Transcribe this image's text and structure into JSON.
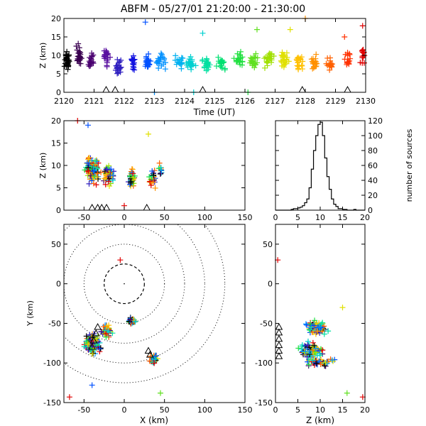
{
  "title": "ABFM - 05/27/01 21:20:00 - 21:30:00",
  "chart_data": [
    {
      "id": "time-height",
      "type": "scatter",
      "xlabel": "Time (UT)",
      "ylabel": "Z (km)",
      "xlim": [
        2120,
        2130
      ],
      "ylim": [
        0,
        20
      ],
      "xticks": [
        "2120",
        "2121",
        "2122",
        "2123",
        "2124",
        "2125",
        "2126",
        "2127",
        "2128",
        "2129",
        "2130"
      ],
      "yticks": [
        "0",
        "5",
        "10",
        "15",
        "20"
      ],
      "clusters": [
        {
          "x": 2120.1,
          "y": 9,
          "n": 30,
          "color": "#000000",
          "dx": 0.12,
          "dy": 3
        },
        {
          "x": 2120.5,
          "y": 10,
          "n": 28,
          "color": "#3a0050",
          "dx": 0.12,
          "dy": 4
        },
        {
          "x": 2120.9,
          "y": 9,
          "n": 22,
          "color": "#4a0070",
          "dx": 0.12,
          "dy": 3.5
        },
        {
          "x": 2121.4,
          "y": 9,
          "n": 22,
          "color": "#5a10a0",
          "dx": 0.15,
          "dy": 3.5
        },
        {
          "x": 2121.8,
          "y": 7,
          "n": 24,
          "color": "#3020c0",
          "dx": 0.15,
          "dy": 3
        },
        {
          "x": 2122.3,
          "y": 8,
          "n": 18,
          "color": "#1010e0",
          "dx": 0.12,
          "dy": 3
        },
        {
          "x": 2122.8,
          "y": 8,
          "n": 22,
          "color": "#0050ff",
          "dx": 0.15,
          "dy": 4
        },
        {
          "x": 2123.2,
          "y": 8,
          "n": 22,
          "color": "#0090ff",
          "dx": 0.2,
          "dy": 3
        },
        {
          "x": 2123.8,
          "y": 8,
          "n": 16,
          "color": "#00b0f0",
          "dx": 0.2,
          "dy": 3
        },
        {
          "x": 2124.2,
          "y": 8,
          "n": 22,
          "color": "#00d0d0",
          "dx": 0.2,
          "dy": 3
        },
        {
          "x": 2124.7,
          "y": 8,
          "n": 22,
          "color": "#00e0a0",
          "dx": 0.2,
          "dy": 3
        },
        {
          "x": 2125.2,
          "y": 8,
          "n": 20,
          "color": "#00e070",
          "dx": 0.2,
          "dy": 3
        },
        {
          "x": 2125.8,
          "y": 9,
          "n": 22,
          "color": "#20e040",
          "dx": 0.2,
          "dy": 3
        },
        {
          "x": 2126.3,
          "y": 8,
          "n": 22,
          "color": "#60e020",
          "dx": 0.2,
          "dy": 3
        },
        {
          "x": 2126.8,
          "y": 9,
          "n": 22,
          "color": "#a0e000",
          "dx": 0.2,
          "dy": 3
        },
        {
          "x": 2127.3,
          "y": 9,
          "n": 26,
          "color": "#e0e000",
          "dx": 0.2,
          "dy": 3
        },
        {
          "x": 2127.8,
          "y": 8,
          "n": 22,
          "color": "#ffc000",
          "dx": 0.2,
          "dy": 3
        },
        {
          "x": 2128.3,
          "y": 8,
          "n": 22,
          "color": "#ff9000",
          "dx": 0.15,
          "dy": 3
        },
        {
          "x": 2128.8,
          "y": 8,
          "n": 18,
          "color": "#ff6000",
          "dx": 0.15,
          "dy": 3
        },
        {
          "x": 2129.4,
          "y": 9,
          "n": 16,
          "color": "#ff3000",
          "dx": 0.15,
          "dy": 4
        },
        {
          "x": 2129.9,
          "y": 10,
          "n": 14,
          "color": "#e00000",
          "dx": 0.1,
          "dy": 4
        }
      ],
      "outliers": [
        {
          "x": 2122.7,
          "y": 19,
          "color": "#0050ff"
        },
        {
          "x": 2124.6,
          "y": 16,
          "color": "#00d0d0"
        },
        {
          "x": 2126.4,
          "y": 17,
          "color": "#60e020"
        },
        {
          "x": 2127.5,
          "y": 17,
          "color": "#e0e000"
        },
        {
          "x": 2128.0,
          "y": 20,
          "color": "#ff9000"
        },
        {
          "x": 2129.3,
          "y": 15,
          "color": "#ff3000"
        },
        {
          "x": 2129.9,
          "y": 18,
          "color": "#e00000"
        },
        {
          "x": 2123.0,
          "y": 0,
          "color": "#0090ff"
        },
        {
          "x": 2124.3,
          "y": 0,
          "color": "#00d0d0"
        },
        {
          "x": 2126.1,
          "y": 0,
          "color": "#20e040"
        }
      ],
      "triangles_x": [
        2121.4,
        2121.7,
        2124.6,
        2127.9,
        2129.4
      ]
    },
    {
      "id": "x-height",
      "type": "scatter",
      "ylabel": "Z (km)",
      "xlim": [
        -75,
        150
      ],
      "ylim": [
        0,
        20
      ],
      "xticks": [
        "-50",
        "0",
        "50",
        "100",
        "150"
      ],
      "yticks": [
        "0",
        "5",
        "10",
        "15",
        "20"
      ],
      "clusters": [
        {
          "x": -40,
          "y": 9,
          "n": 110,
          "dx": 12,
          "dy": 4
        },
        {
          "x": -20,
          "y": 8,
          "n": 60,
          "dx": 8,
          "dy": 3
        },
        {
          "x": 10,
          "y": 7,
          "n": 45,
          "dx": 6,
          "dy": 3
        },
        {
          "x": 35,
          "y": 7,
          "n": 30,
          "dx": 6,
          "dy": 3
        },
        {
          "x": 45,
          "y": 9,
          "n": 10,
          "dx": 4,
          "dy": 2
        }
      ],
      "outliers": [
        {
          "x": -58,
          "y": 20,
          "color": "#e00000"
        },
        {
          "x": 30,
          "y": 17,
          "color": "#e0e000"
        },
        {
          "x": -45,
          "y": 19,
          "color": "#0050ff"
        },
        {
          "x": 0,
          "y": 1,
          "color": "#e00000"
        }
      ],
      "triangles_x": [
        -40,
        -33,
        -28,
        -22,
        28
      ]
    },
    {
      "id": "height-histogram",
      "type": "line",
      "xlim": [
        0,
        20
      ],
      "ylim": [
        0,
        120
      ],
      "ylabel": "number of sources",
      "xticks": [
        "0",
        "5",
        "10",
        "15",
        "20"
      ],
      "yticks": [
        "0",
        "20",
        "40",
        "60",
        "80",
        "100",
        "120"
      ],
      "bin_width": 0.5,
      "values": [
        0,
        0,
        0,
        0,
        0,
        0,
        0,
        1,
        2,
        2,
        3,
        4,
        6,
        10,
        15,
        30,
        55,
        80,
        100,
        115,
        118,
        100,
        70,
        45,
        28,
        15,
        8,
        5,
        2,
        2,
        1,
        1,
        0,
        0,
        0,
        1,
        0,
        0,
        0,
        0
      ]
    },
    {
      "id": "plan-view",
      "type": "scatter",
      "xlabel": "X (km)",
      "ylabel": "Y (km)",
      "xlim": [
        -75,
        150
      ],
      "ylim": [
        -150,
        75
      ],
      "xticks": [
        "-50",
        "0",
        "50",
        "100",
        "150"
      ],
      "yticks": [
        "-150",
        "-100",
        "-50",
        "0",
        "50"
      ],
      "range_rings_km": [
        25,
        50,
        75,
        100,
        125
      ],
      "clusters": [
        {
          "x": -40,
          "y": -75,
          "n": 110,
          "dx": 14,
          "dy": 16
        },
        {
          "x": -22,
          "y": -60,
          "n": 50,
          "dx": 8,
          "dy": 10
        },
        {
          "x": 10,
          "y": -47,
          "n": 45,
          "dx": 6,
          "dy": 5
        },
        {
          "x": 37,
          "y": -95,
          "n": 30,
          "dx": 7,
          "dy": 8
        }
      ],
      "outliers": [
        {
          "x": -5,
          "y": 30,
          "color": "#e00000"
        },
        {
          "x": 45,
          "y": -138,
          "color": "#60e020"
        },
        {
          "x": -68,
          "y": -143,
          "color": "#e00000"
        },
        {
          "x": -40,
          "y": -128,
          "color": "#0050ff"
        }
      ],
      "triangles": [
        [
          -40,
          -80
        ],
        [
          -38,
          -72
        ],
        [
          -35,
          -63
        ],
        [
          -33,
          -55
        ],
        [
          30,
          -85
        ],
        [
          32,
          -90
        ]
      ]
    },
    {
      "id": "height-y",
      "type": "scatter",
      "xlabel": "Z (km)",
      "xlim": [
        0,
        20
      ],
      "ylim": [
        -150,
        75
      ],
      "xticks": [
        "0",
        "5",
        "10",
        "15",
        "20"
      ],
      "yticks": [
        "-150",
        "-100",
        "-50",
        "0",
        "50"
      ],
      "clusters": [
        {
          "x": 9,
          "y": -55,
          "n": 100,
          "dx": 3,
          "dy": 10
        },
        {
          "x": 8,
          "y": -85,
          "n": 80,
          "dx": 3.5,
          "dy": 14
        },
        {
          "x": 10,
          "y": -100,
          "n": 40,
          "dx": 4,
          "dy": 8
        }
      ],
      "outliers": [
        {
          "x": 0.5,
          "y": 30,
          "color": "#e00000"
        },
        {
          "x": 16,
          "y": -138,
          "color": "#60e020"
        },
        {
          "x": 19.5,
          "y": -143,
          "color": "#e00000"
        },
        {
          "x": 15,
          "y": -30,
          "color": "#e0e000"
        }
      ],
      "triangles": [
        [
          0.3,
          -55
        ],
        [
          0.3,
          -62
        ],
        [
          0.3,
          -70
        ],
        [
          0.3,
          -78
        ],
        [
          0.3,
          -85
        ],
        [
          0.3,
          -92
        ]
      ]
    }
  ]
}
